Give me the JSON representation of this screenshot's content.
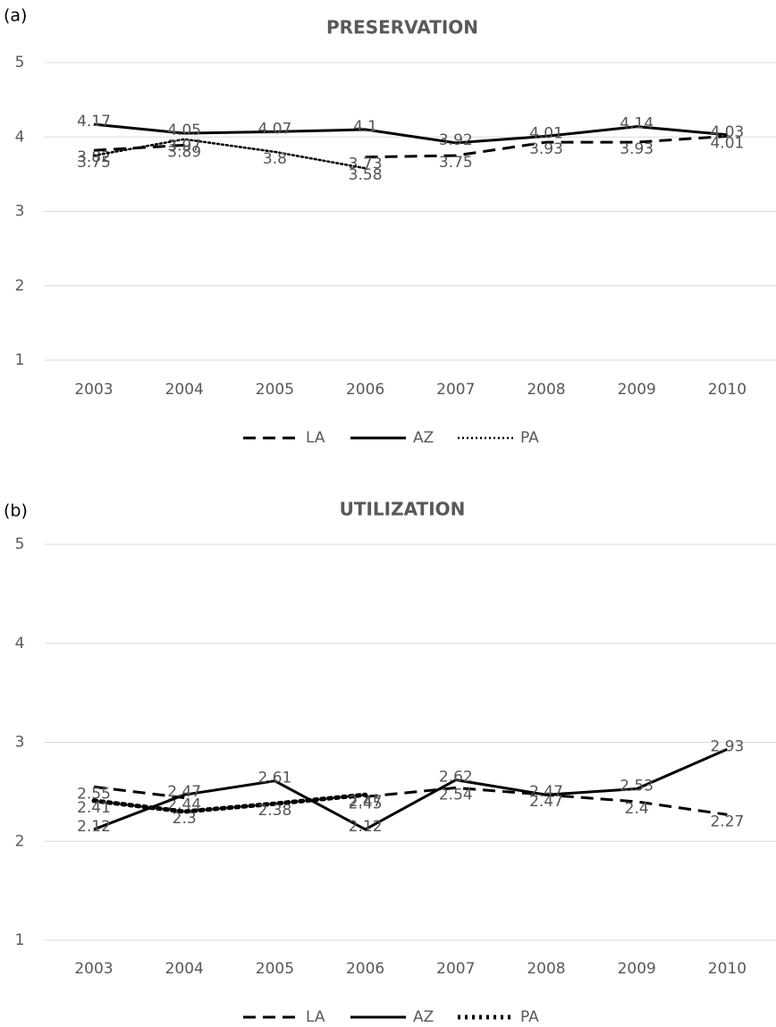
{
  "chart_data": [
    {
      "type": "line",
      "label": "(a)",
      "title": "PRESERVATION",
      "categories": [
        "2003",
        "2004",
        "2005",
        "2006",
        "2007",
        "2008",
        "2009",
        "2010"
      ],
      "ylim": [
        1,
        5
      ],
      "yticks": [
        1,
        2,
        3,
        4,
        5
      ],
      "grid": true,
      "series": [
        {
          "name": "LA",
          "color": "#000000",
          "dash": "dashed",
          "values": [
            3.82,
            3.89,
            null,
            3.73,
            3.75,
            3.93,
            3.93,
            4.01
          ]
        },
        {
          "name": "AZ",
          "color": "#000000",
          "dash": "solid",
          "values": [
            4.17,
            4.05,
            4.07,
            4.1,
            3.92,
            4.01,
            4.14,
            4.03
          ]
        },
        {
          "name": "PA",
          "color": "#000000",
          "dash": "dotted",
          "values": [
            3.75,
            3.97,
            3.8,
            3.58,
            null,
            null,
            null,
            null
          ]
        }
      ]
    },
    {
      "type": "line",
      "label": "(b)",
      "title": "UTILIZATION",
      "categories": [
        "2003",
        "2004",
        "2005",
        "2006",
        "2007",
        "2008",
        "2009",
        "2010"
      ],
      "ylim": [
        1,
        5
      ],
      "yticks": [
        1,
        2,
        3,
        4,
        5
      ],
      "grid": true,
      "series": [
        {
          "name": "LA",
          "color": "#000000",
          "dash": "dashed",
          "values": [
            2.55,
            2.44,
            null,
            2.45,
            2.54,
            2.47,
            2.4,
            2.27
          ]
        },
        {
          "name": "AZ",
          "color": "#000000",
          "dash": "solid",
          "values": [
            2.12,
            2.47,
            2.61,
            2.12,
            2.62,
            2.47,
            2.53,
            2.93
          ]
        },
        {
          "name": "PA",
          "color": "#000000",
          "dash": "dotted-heavy",
          "values": [
            2.41,
            2.3,
            2.38,
            2.47,
            null,
            null,
            null,
            null
          ]
        }
      ]
    }
  ]
}
